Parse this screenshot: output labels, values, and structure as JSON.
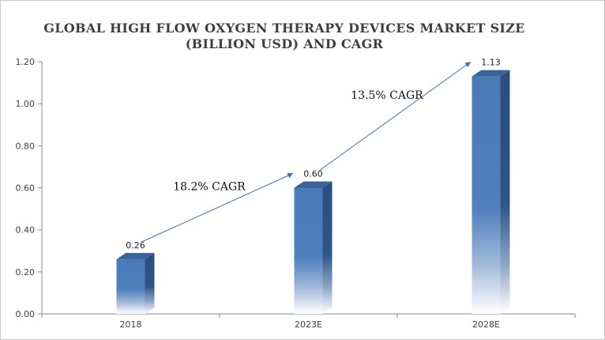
{
  "chart_data": {
    "type": "bar",
    "title_line1": "GLOBAL HIGH FLOW OXYGEN THERAPY DEVICES MARKET SIZE",
    "title_line2": "(BILLION USD) AND CAGR",
    "xlabel": "",
    "ylabel": "",
    "categories": [
      "2018",
      "2023E",
      "2028E"
    ],
    "values": [
      0.26,
      0.6,
      1.13
    ],
    "data_labels": [
      "0.26",
      "0.60",
      "1.13"
    ],
    "ylim": [
      0,
      1.2
    ],
    "y_ticks": [
      "0.00",
      "0.20",
      "0.40",
      "0.60",
      "0.80",
      "1.00",
      "1.20"
    ],
    "grid": false,
    "legend": "none",
    "annotations": [
      {
        "text": "18.2% CAGR",
        "from_category": "2018",
        "to_category": "2023E"
      },
      {
        "text": "13.5% CAGR",
        "from_category": "2023E",
        "to_category": "2028E"
      }
    ],
    "colors": {
      "bar": "#4a7ab8",
      "bar_side": "#2e5180",
      "bar_top": "#3a6399",
      "arrow": "#3f6fad",
      "axis": "#8a8a8a"
    }
  }
}
